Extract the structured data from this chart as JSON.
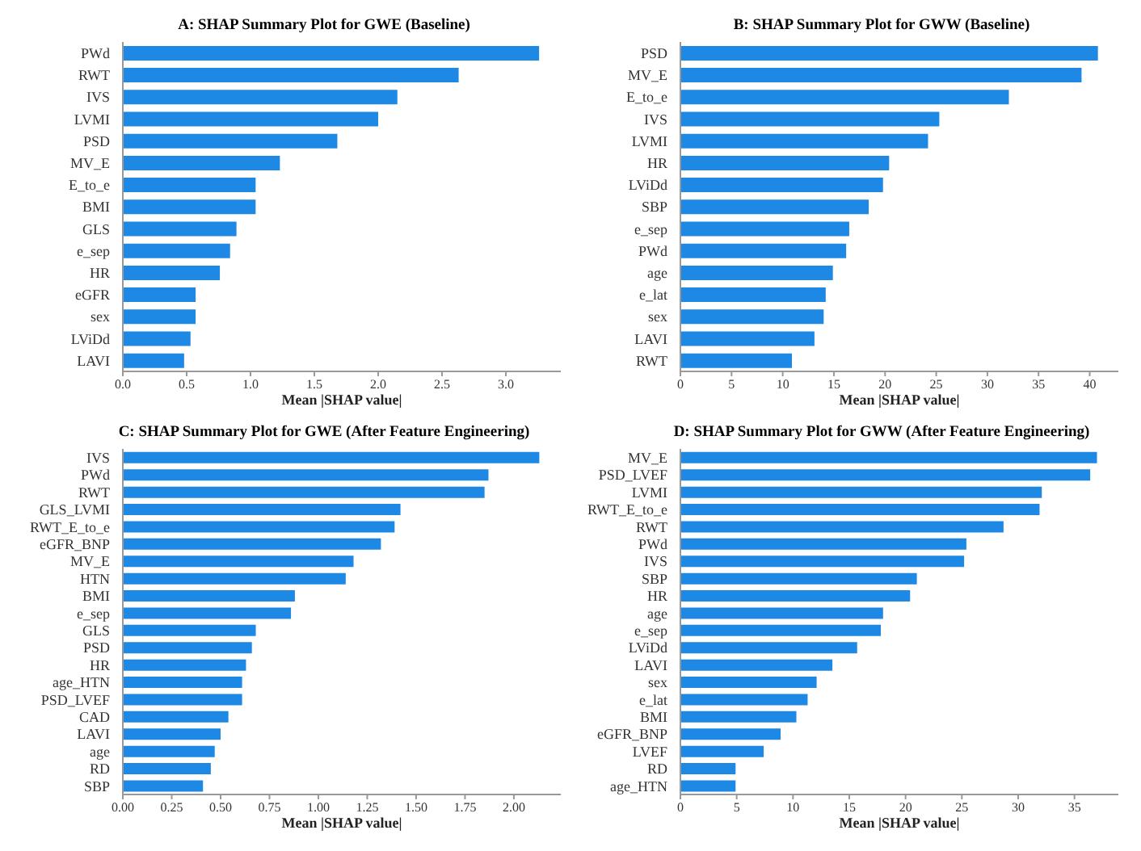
{
  "chart_data": [
    {
      "type": "bar",
      "orientation": "horizontal",
      "title": "A: SHAP Summary Plot for GWE (Baseline)",
      "xlabel": "Mean |SHAP value|",
      "color": "#1e88e5",
      "categories": [
        "PWd",
        "RWT",
        "IVS",
        "LVMI",
        "PSD",
        "MV_E",
        "E_to_e",
        "BMI",
        "GLS",
        "e_sep",
        "HR",
        "eGFR",
        "sex",
        "LViDd",
        "LAVI"
      ],
      "values": [
        3.26,
        2.63,
        2.15,
        2.0,
        1.68,
        1.23,
        1.04,
        1.04,
        0.89,
        0.84,
        0.76,
        0.57,
        0.57,
        0.53,
        0.48
      ],
      "xlim": [
        0,
        3.43
      ],
      "xticks": [
        {
          "value": 0,
          "label": "0.0"
        },
        0.5,
        {
          "value": 1,
          "label": "1.0"
        },
        1.5,
        {
          "value": 2,
          "label": "2.0"
        },
        2.5,
        {
          "value": 3,
          "label": "3.0"
        }
      ]
    },
    {
      "type": "bar",
      "orientation": "horizontal",
      "title": "B: SHAP Summary Plot for GWW (Baseline)",
      "xlabel": "Mean |SHAP value|",
      "color": "#1e88e5",
      "categories": [
        "PSD",
        "MV_E",
        "E_to_e",
        "IVS",
        "LVMI",
        "HR",
        "LViDd",
        "SBP",
        "e_sep",
        "PWd",
        "age",
        "e_lat",
        "sex",
        "LAVI",
        "RWT"
      ],
      "values": [
        40.8,
        39.2,
        32.1,
        25.3,
        24.2,
        20.4,
        19.8,
        18.4,
        16.5,
        16.2,
        14.9,
        14.2,
        14.0,
        13.1,
        10.9
      ],
      "xlim": [
        0,
        42.8
      ],
      "xticks": [
        0,
        5,
        10,
        15,
        20,
        25,
        30,
        35,
        40
      ]
    },
    {
      "type": "bar",
      "orientation": "horizontal",
      "title": "C: SHAP Summary Plot for GWE (After Feature Engineering)",
      "xlabel": "Mean |SHAP value|",
      "color": "#1e88e5",
      "categories": [
        "IVS",
        "PWd",
        "RWT",
        "GLS_LVMI",
        "RWT_E_to_e",
        "eGFR_BNP",
        "MV_E",
        "HTN",
        "BMI",
        "e_sep",
        "GLS",
        "PSD",
        "HR",
        "age_HTN",
        "PSD_LVEF",
        "CAD",
        "LAVI",
        "age",
        "RD",
        "SBP"
      ],
      "values": [
        2.13,
        1.87,
        1.85,
        1.42,
        1.39,
        1.32,
        1.18,
        1.14,
        0.88,
        0.86,
        0.68,
        0.66,
        0.63,
        0.61,
        0.61,
        0.54,
        0.5,
        0.47,
        0.45,
        0.41
      ],
      "xlim": [
        0,
        2.24
      ],
      "xticks": [
        {
          "value": 0,
          "label": "0.00"
        },
        0.25,
        {
          "value": 0.5,
          "label": "0.50"
        },
        0.75,
        {
          "value": 1,
          "label": "1.00"
        },
        1.25,
        {
          "value": 1.5,
          "label": "1.50"
        },
        1.75,
        {
          "value": 2,
          "label": "2.00"
        }
      ]
    },
    {
      "type": "bar",
      "orientation": "horizontal",
      "title": "D: SHAP Summary Plot for GWW (After Feature Engineering)",
      "xlabel": "Mean |SHAP value|",
      "color": "#1e88e5",
      "categories": [
        "MV_E",
        "PSD_LVEF",
        "LVMI",
        "RWT_E_to_e",
        "RWT",
        "PWd",
        "IVS",
        "SBP",
        "HR",
        "age",
        "e_sep",
        "LViDd",
        "LAVI",
        "sex",
        "e_lat",
        "BMI",
        "eGFR_BNP",
        "LVEF",
        "RD",
        "age_HTN"
      ],
      "values": [
        37.0,
        36.4,
        32.1,
        31.9,
        28.7,
        25.4,
        25.2,
        21.0,
        20.4,
        18.0,
        17.8,
        15.7,
        13.5,
        12.1,
        11.3,
        10.3,
        8.9,
        7.4,
        4.9,
        4.9
      ],
      "xlim": [
        0,
        38.9
      ],
      "xticks": [
        0,
        5,
        10,
        15,
        20,
        25,
        30,
        35
      ]
    }
  ]
}
